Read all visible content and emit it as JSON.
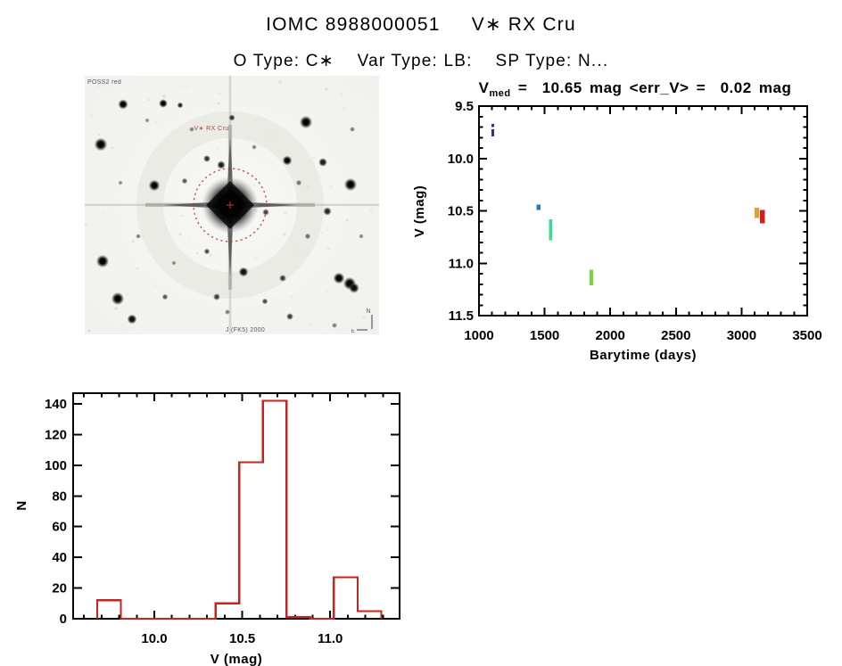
{
  "header": {
    "title": "IOMC 8988000051     V∗ RX Cru",
    "subtitle": "O Type: C∗    Var Type: LB:    SP Type: N..."
  },
  "finding_chart": {
    "survey_label": "POSS2 red",
    "target_label": "V∗ RX Cru",
    "bottom_caption": "J (FK5) 2000",
    "corner_mark": ",",
    "compass_north": "N",
    "compass_east": "E",
    "marker_color": "#bf3333",
    "stars": [
      [
        43,
        32,
        3.0,
        1
      ],
      [
        88,
        31,
        2.6,
        1
      ],
      [
        107,
        33,
        1.8,
        0.85
      ],
      [
        165,
        47,
        1.9,
        0.8
      ],
      [
        248,
        52,
        3.8,
        1
      ],
      [
        18,
        77,
        3.9,
        1
      ],
      [
        137,
        93,
        2.1,
        0.8
      ],
      [
        153,
        100,
        2.5,
        0.9
      ],
      [
        227,
        95,
        2.9,
        1
      ],
      [
        267,
        97,
        2.6,
        0.9
      ],
      [
        78,
        123,
        3.4,
        1
      ],
      [
        112,
        118,
        1.8,
        0.65
      ],
      [
        298,
        122,
        3.8,
        1
      ],
      [
        203,
        153,
        2.0,
        0.75
      ],
      [
        272,
        152,
        2.5,
        0.85
      ],
      [
        20,
        208,
        3.8,
        1
      ],
      [
        137,
        197,
        1.8,
        0.7
      ],
      [
        178,
        220,
        2.9,
        0.95
      ],
      [
        222,
        227,
        2.1,
        0.75
      ],
      [
        285,
        227,
        3.4,
        1
      ],
      [
        297,
        233,
        3.8,
        1
      ],
      [
        37,
        250,
        3.8,
        1
      ],
      [
        90,
        248,
        1.8,
        0.65
      ],
      [
        148,
        248,
        2.1,
        0.75
      ],
      [
        53,
        273,
        2.9,
        0.95
      ],
      [
        202,
        253,
        1.8,
        0.7
      ],
      [
        230,
        270,
        2.1,
        0.75
      ],
      [
        302,
        238,
        3.1,
        0.95
      ],
      [
        120,
        60,
        1.5,
        0.5
      ],
      [
        250,
        180,
        1.8,
        0.55
      ],
      [
        60,
        180,
        1.5,
        0.5
      ],
      [
        240,
        120,
        1.7,
        0.55
      ],
      [
        190,
        80,
        1.5,
        0.5
      ],
      [
        300,
        60,
        1.6,
        0.5
      ],
      [
        40,
        120,
        1.4,
        0.45
      ],
      [
        280,
        280,
        1.6,
        0.5
      ],
      [
        160,
        265,
        1.6,
        0.5
      ],
      [
        100,
        210,
        1.4,
        0.45
      ],
      [
        310,
        180,
        1.5,
        0.45
      ],
      [
        70,
        50,
        1.4,
        0.45
      ]
    ]
  },
  "chart_data": [
    {
      "type": "scatter",
      "title": "V_med =  10.65 mag <err_V> =  0.02 mag",
      "title_parts": {
        "main": "V",
        "sub": "med",
        "rest": " =  10.65 mag <err_V> =  0.02 mag"
      },
      "xlabel": "Barytime (days)",
      "ylabel": "V (mag)",
      "xlim": [
        1000,
        3500
      ],
      "ylim": [
        11.5,
        9.5
      ],
      "y_axis_inverted": true,
      "grid": false,
      "x_ticks": {
        "values": [
          1000,
          1500,
          2000,
          2500,
          3000,
          3500
        ],
        "labels": [
          "1000",
          "1500",
          "2000",
          "2500",
          "3000",
          "3500"
        ],
        "minor_step": 100
      },
      "y_ticks": {
        "values": [
          9.5,
          10.0,
          10.5,
          11.0,
          11.5
        ],
        "labels": [
          "9.5",
          "10.0",
          "10.5",
          "11.0",
          "11.5"
        ],
        "minor_step": 0.1
      },
      "series": [
        {
          "name": "obs-violet-upper",
          "color": "#4A2590",
          "x": 1105,
          "v_from": 9.67,
          "v_to": 9.7,
          "w": 3
        },
        {
          "name": "obs-violet-lower",
          "color": "#4A2590",
          "x": 1105,
          "v_from": 9.72,
          "v_to": 9.79,
          "w": 3
        },
        {
          "name": "obs-blue",
          "color": "#2E6FD9",
          "x": 1455,
          "v_from": 10.44,
          "v_to": 10.49,
          "w": 4.5
        },
        {
          "name": "obs-spring-green",
          "color": "#38DC8E",
          "x": 1545,
          "v_from": 10.58,
          "v_to": 10.78,
          "w": 3.5
        },
        {
          "name": "obs-green",
          "color": "#6FDC3A",
          "x": 1855,
          "v_from": 11.06,
          "v_to": 11.21,
          "w": 4
        },
        {
          "name": "obs-orange",
          "color": "#E2A02C",
          "x": 3115,
          "v_from": 10.47,
          "v_to": 10.57,
          "w": 5
        },
        {
          "name": "obs-red",
          "color": "#CE1F1C",
          "x": 3160,
          "v_from": 10.49,
          "v_to": 10.62,
          "w": 5.5
        }
      ]
    },
    {
      "type": "bar",
      "xlabel": "V (mag)",
      "ylabel": "N",
      "bar_color": "#C32522",
      "xlim": [
        9.54,
        11.39
      ],
      "ylim": [
        0,
        147
      ],
      "grid": false,
      "x_ticks": {
        "values": [
          10.0,
          10.5,
          11.0
        ],
        "labels": [
          "10.0",
          "10.5",
          "11.0"
        ],
        "minor_step": 0.1
      },
      "y_ticks": {
        "values": [
          0,
          20,
          40,
          60,
          80,
          100,
          120,
          140
        ],
        "labels": [
          "0",
          "20",
          "40",
          "60",
          "80",
          "100",
          "120",
          "140"
        ]
      },
      "bins": {
        "start": 9.676,
        "width": 0.1345,
        "counts": [
          12,
          0,
          0,
          0,
          0,
          10,
          102,
          142,
          1,
          0,
          27,
          5
        ]
      }
    }
  ]
}
